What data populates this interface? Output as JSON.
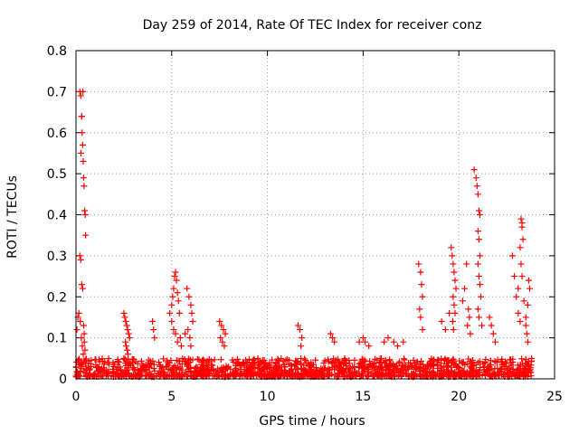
{
  "chart_data": {
    "type": "scatter",
    "title": "Day 259 of 2014, Rate Of TEC Index for receiver conz",
    "xlabel": "GPS time / hours",
    "ylabel": "ROTI / TECUs",
    "xlim": [
      0,
      25
    ],
    "ylim": [
      0,
      0.8
    ],
    "xticks": [
      0,
      5,
      10,
      15,
      20,
      25
    ],
    "yticks": [
      0,
      0.1,
      0.2,
      0.3,
      0.4,
      0.5,
      0.6,
      0.7,
      0.8
    ],
    "xtick_labels": [
      "0",
      "5",
      "10",
      "15",
      "20",
      "25"
    ],
    "ytick_labels": [
      "0",
      "0.1",
      "0.2",
      "0.3",
      "0.4",
      "0.5",
      "0.6",
      "0.7",
      "0.8"
    ],
    "grid": true,
    "marker": "+",
    "color": "#ff0000",
    "x_coverage": [
      0,
      23.8
    ],
    "baseline_band": [
      0.005,
      0.05
    ],
    "series": [
      {
        "name": "ROTI",
        "x": [
          0.05,
          0.1,
          0.15,
          0.2,
          0.25,
          0.3,
          0.32,
          0.35,
          0.38,
          0.4,
          0.42,
          0.45,
          0.48,
          0.5,
          0.2,
          0.25,
          0.3,
          0.35,
          0.22,
          0.28,
          0.33,
          0.38,
          0.43,
          0.26,
          0.3,
          0.36,
          0.4,
          0.44,
          0.47,
          2.5,
          2.55,
          2.6,
          2.65,
          2.7,
          2.75,
          2.8,
          2.58,
          2.62,
          2.68,
          2.72,
          2.5,
          2.6,
          2.7,
          4.0,
          4.05,
          4.1,
          4.9,
          5.0,
          5.05,
          5.1,
          5.15,
          5.2,
          5.25,
          5.3,
          5.35,
          5.4,
          5.0,
          5.1,
          5.2,
          5.3,
          5.45,
          5.5,
          5.7,
          5.8,
          5.9,
          6.0,
          6.05,
          6.1,
          5.85,
          5.95,
          6.0,
          7.5,
          7.6,
          7.7,
          7.8,
          7.55,
          7.65,
          7.75,
          11.6,
          11.7,
          11.8,
          11.75,
          13.3,
          13.4,
          13.5,
          14.8,
          15.0,
          15.1,
          15.3,
          16.1,
          16.3,
          16.6,
          16.8,
          17.1,
          17.9,
          18.0,
          18.05,
          18.1,
          17.95,
          18.0,
          18.1,
          19.1,
          19.3,
          19.5,
          19.6,
          19.65,
          19.7,
          19.75,
          19.8,
          19.85,
          19.7,
          19.75,
          19.8,
          19.68,
          19.72,
          20.2,
          20.3,
          20.4,
          20.5,
          20.55,
          20.45,
          20.6,
          20.8,
          20.9,
          20.95,
          21.0,
          21.05,
          21.1,
          21.0,
          21.05,
          21.1,
          21.0,
          21.05,
          21.1,
          21.15,
          21.0,
          21.05,
          21.2,
          21.6,
          21.7,
          21.8,
          21.9,
          22.8,
          22.9,
          23.0,
          23.1,
          23.2,
          23.3,
          23.25,
          23.3,
          23.35,
          23.2,
          23.25,
          23.3,
          23.1,
          23.4,
          23.5,
          23.6,
          23.65,
          23.7,
          23.5,
          23.55,
          23.6
        ],
        "y": [
          0.12,
          0.15,
          0.16,
          0.7,
          0.69,
          0.64,
          0.6,
          0.57,
          0.53,
          0.49,
          0.47,
          0.41,
          0.4,
          0.35,
          0.3,
          0.29,
          0.23,
          0.22,
          0.14,
          0.1,
          0.08,
          0.06,
          0.11,
          0.55,
          0.64,
          0.7,
          0.13,
          0.09,
          0.07,
          0.16,
          0.15,
          0.14,
          0.13,
          0.12,
          0.11,
          0.1,
          0.09,
          0.08,
          0.07,
          0.06,
          0.05,
          0.045,
          0.04,
          0.14,
          0.12,
          0.1,
          0.16,
          0.18,
          0.2,
          0.22,
          0.25,
          0.26,
          0.24,
          0.21,
          0.19,
          0.16,
          0.14,
          0.12,
          0.11,
          0.09,
          0.1,
          0.08,
          0.11,
          0.22,
          0.2,
          0.18,
          0.16,
          0.14,
          0.12,
          0.1,
          0.08,
          0.14,
          0.13,
          0.12,
          0.11,
          0.1,
          0.09,
          0.08,
          0.13,
          0.12,
          0.1,
          0.08,
          0.11,
          0.1,
          0.09,
          0.09,
          0.1,
          0.09,
          0.08,
          0.09,
          0.1,
          0.09,
          0.08,
          0.09,
          0.28,
          0.26,
          0.23,
          0.2,
          0.17,
          0.15,
          0.12,
          0.14,
          0.12,
          0.16,
          0.32,
          0.3,
          0.28,
          0.26,
          0.24,
          0.22,
          0.2,
          0.18,
          0.16,
          0.14,
          0.12,
          0.19,
          0.22,
          0.28,
          0.17,
          0.15,
          0.13,
          0.11,
          0.51,
          0.49,
          0.47,
          0.45,
          0.41,
          0.4,
          0.36,
          0.34,
          0.3,
          0.28,
          0.25,
          0.23,
          0.2,
          0.17,
          0.15,
          0.13,
          0.15,
          0.13,
          0.11,
          0.09,
          0.3,
          0.25,
          0.2,
          0.16,
          0.14,
          0.38,
          0.39,
          0.37,
          0.34,
          0.32,
          0.28,
          0.25,
          0.22,
          0.19,
          0.15,
          0.18,
          0.24,
          0.22,
          0.13,
          0.11,
          0.09
        ]
      }
    ]
  }
}
